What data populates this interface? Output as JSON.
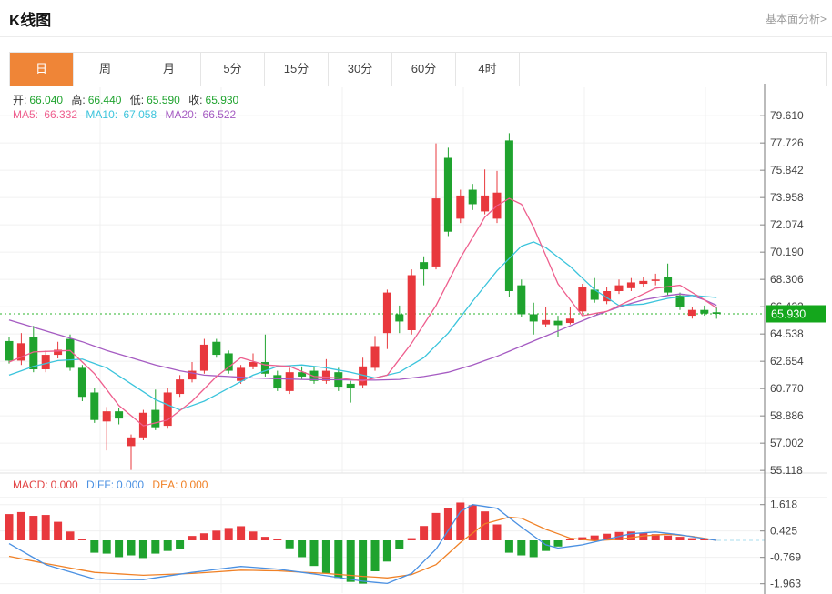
{
  "header": {
    "title": "K线图",
    "link": "基本面分析>"
  },
  "tabs": {
    "items": [
      {
        "label": "日",
        "active": true
      },
      {
        "label": "周",
        "active": false
      },
      {
        "label": "月",
        "active": false
      },
      {
        "label": "5分",
        "active": false
      },
      {
        "label": "15分",
        "active": false
      },
      {
        "label": "30分",
        "active": false
      },
      {
        "label": "60分",
        "active": false
      },
      {
        "label": "4时",
        "active": false
      }
    ]
  },
  "ohlc": {
    "open_label": "开:",
    "open": "66.040",
    "high_label": "高:",
    "high": "66.440",
    "low_label": "低:",
    "low": "65.590",
    "close_label": "收:",
    "close": "65.930"
  },
  "ma": {
    "ma5_label": "MA5:",
    "ma5": "66.332",
    "ma10_label": "MA10:",
    "ma10": "67.058",
    "ma20_label": "MA20:",
    "ma20": "66.522"
  },
  "macd_header": {
    "macd_label": "MACD:",
    "macd": "0.000",
    "diff_label": "DIFF:",
    "diff": "0.000",
    "dea_label": "DEA:",
    "dea": "0.000"
  },
  "colors": {
    "up": "#e8383d",
    "down": "#1fa32e",
    "price_tag_bg": "#14a71c",
    "ma5": "#ee5f8e",
    "ma10": "#3bc4dc",
    "ma20": "#a55bc2",
    "diff": "#4a90e2",
    "dea": "#f08126",
    "tab_active_bg": "#ef8537",
    "grid": "#f0f0f0",
    "axis_line": "#777777",
    "axis_text": "#444444",
    "current_line": "#2db52d"
  },
  "chart_data": {
    "type": "candlestick",
    "convention": "red = up, green = down (Chinese convention)",
    "price_axis": {
      "ticks": [
        "79.610",
        "77.726",
        "75.842",
        "73.958",
        "72.074",
        "70.190",
        "68.306",
        "66.422",
        "64.538",
        "62.654",
        "60.770",
        "58.886",
        "57.002",
        "55.118"
      ],
      "min": 55.118,
      "max": 79.61,
      "current_price": 65.93,
      "current_price_label": "65.930"
    },
    "candles": [
      [
        64.05,
        64.3,
        62.5,
        62.7
      ],
      [
        62.7,
        64.6,
        62.4,
        63.9
      ],
      [
        64.3,
        65.1,
        61.9,
        62.1
      ],
      [
        62.1,
        63.4,
        61.9,
        63.1
      ],
      [
        63.1,
        64.0,
        62.85,
        63.45
      ],
      [
        64.2,
        64.5,
        62.0,
        62.2
      ],
      [
        62.2,
        62.4,
        59.9,
        60.2
      ],
      [
        60.5,
        60.8,
        58.4,
        58.6
      ],
      [
        58.5,
        59.5,
        56.5,
        59.2
      ],
      [
        59.2,
        59.4,
        58.3,
        58.7
      ],
      [
        56.8,
        57.6,
        55.15,
        57.4
      ],
      [
        57.4,
        59.3,
        57.2,
        59.1
      ],
      [
        59.3,
        60.7,
        57.9,
        58.1
      ],
      [
        58.2,
        60.8,
        58.0,
        60.5
      ],
      [
        60.4,
        61.7,
        60.2,
        61.4
      ],
      [
        61.4,
        62.6,
        61.2,
        62.0
      ],
      [
        62.0,
        64.2,
        61.8,
        63.8
      ],
      [
        64.0,
        64.2,
        62.9,
        63.1
      ],
      [
        63.2,
        63.4,
        61.8,
        62.0
      ],
      [
        61.3,
        62.4,
        61.1,
        62.2
      ],
      [
        62.3,
        63.2,
        62.1,
        62.6
      ],
      [
        62.6,
        64.5,
        61.6,
        61.8
      ],
      [
        61.7,
        62.0,
        60.6,
        60.8
      ],
      [
        60.6,
        62.2,
        60.4,
        61.9
      ],
      [
        61.9,
        62.3,
        61.4,
        61.6
      ],
      [
        62.0,
        62.3,
        61.1,
        61.3
      ],
      [
        61.3,
        62.8,
        61.1,
        62.0
      ],
      [
        61.9,
        62.2,
        60.6,
        60.9
      ],
      [
        61.1,
        61.3,
        59.8,
        60.8
      ],
      [
        61.0,
        62.9,
        60.8,
        62.3
      ],
      [
        62.2,
        64.4,
        62.0,
        63.7
      ],
      [
        64.6,
        67.6,
        63.5,
        67.4
      ],
      [
        65.9,
        66.5,
        64.6,
        65.4
      ],
      [
        64.8,
        69.0,
        64.5,
        68.6
      ],
      [
        69.5,
        69.9,
        67.9,
        69.0
      ],
      [
        69.2,
        77.7,
        69.0,
        73.9
      ],
      [
        76.7,
        77.4,
        71.3,
        71.6
      ],
      [
        72.5,
        74.5,
        72.2,
        74.1
      ],
      [
        74.5,
        74.9,
        73.1,
        73.5
      ],
      [
        73.0,
        75.9,
        72.8,
        74.1
      ],
      [
        72.5,
        75.8,
        72.2,
        74.3
      ],
      [
        77.9,
        78.4,
        67.1,
        67.5
      ],
      [
        67.9,
        68.3,
        65.7,
        65.9
      ],
      [
        65.9,
        66.7,
        64.5,
        65.4
      ],
      [
        65.2,
        66.4,
        65.0,
        65.5
      ],
      [
        65.45,
        65.8,
        64.35,
        65.15
      ],
      [
        65.3,
        66.4,
        65.2,
        65.6
      ],
      [
        66.1,
        68.0,
        65.9,
        67.8
      ],
      [
        67.6,
        68.4,
        66.7,
        66.9
      ],
      [
        66.8,
        67.8,
        66.6,
        67.5
      ],
      [
        67.5,
        68.3,
        67.3,
        67.9
      ],
      [
        67.7,
        68.4,
        67.5,
        68.1
      ],
      [
        68.0,
        68.5,
        67.8,
        68.2
      ],
      [
        68.2,
        68.7,
        67.9,
        68.3
      ],
      [
        68.5,
        69.4,
        67.2,
        67.4
      ],
      [
        67.2,
        67.4,
        66.2,
        66.4
      ],
      [
        65.8,
        66.4,
        65.6,
        66.2
      ],
      [
        66.2,
        66.5,
        65.8,
        65.95
      ],
      [
        66.04,
        66.44,
        65.59,
        65.93
      ]
    ],
    "moving_averages": {
      "ma5_points": [
        [
          0,
          62.6
        ],
        [
          2,
          63.3
        ],
        [
          5,
          63.4
        ],
        [
          7,
          61.8
        ],
        [
          9,
          59.6
        ],
        [
          11,
          58.2
        ],
        [
          13,
          58.6
        ],
        [
          15,
          59.9
        ],
        [
          17,
          61.6
        ],
        [
          19,
          62.9
        ],
        [
          21,
          62.4
        ],
        [
          23,
          62.3
        ],
        [
          25,
          61.6
        ],
        [
          27,
          61.5
        ],
        [
          29,
          61.3
        ],
        [
          31,
          61.7
        ],
        [
          33,
          63.9
        ],
        [
          35,
          66.5
        ],
        [
          37,
          69.8
        ],
        [
          39,
          72.6
        ],
        [
          40,
          73.4
        ],
        [
          41,
          73.9
        ],
        [
          42,
          73.5
        ],
        [
          43,
          71.9
        ],
        [
          45,
          68.0
        ],
        [
          47,
          65.8
        ],
        [
          49,
          66.1
        ],
        [
          51,
          66.9
        ],
        [
          53,
          67.7
        ],
        [
          55,
          67.9
        ],
        [
          56,
          67.4
        ],
        [
          57,
          66.9
        ],
        [
          58,
          66.33
        ]
      ],
      "ma10_points": [
        [
          0,
          61.7
        ],
        [
          2,
          62.3
        ],
        [
          4,
          62.7
        ],
        [
          6,
          62.8
        ],
        [
          8,
          62.2
        ],
        [
          10,
          61.1
        ],
        [
          12,
          60.0
        ],
        [
          14,
          59.3
        ],
        [
          16,
          59.9
        ],
        [
          18,
          60.8
        ],
        [
          20,
          61.7
        ],
        [
          22,
          62.3
        ],
        [
          24,
          62.4
        ],
        [
          26,
          62.2
        ],
        [
          28,
          61.9
        ],
        [
          30,
          61.5
        ],
        [
          32,
          61.9
        ],
        [
          34,
          62.9
        ],
        [
          36,
          64.6
        ],
        [
          38,
          66.8
        ],
        [
          40,
          68.9
        ],
        [
          42,
          70.6
        ],
        [
          43,
          70.9
        ],
        [
          44,
          70.5
        ],
        [
          46,
          69.2
        ],
        [
          48,
          67.6
        ],
        [
          50,
          66.5
        ],
        [
          52,
          66.6
        ],
        [
          54,
          67.0
        ],
        [
          56,
          67.2
        ],
        [
          58,
          67.06
        ]
      ],
      "ma20_points": [
        [
          0,
          65.5
        ],
        [
          2,
          65.0
        ],
        [
          4,
          64.5
        ],
        [
          6,
          64.0
        ],
        [
          8,
          63.4
        ],
        [
          10,
          62.9
        ],
        [
          12,
          62.4
        ],
        [
          14,
          62.0
        ],
        [
          16,
          61.7
        ],
        [
          18,
          61.6
        ],
        [
          20,
          61.5
        ],
        [
          22,
          61.45
        ],
        [
          24,
          61.4
        ],
        [
          30,
          61.35
        ],
        [
          32,
          61.4
        ],
        [
          34,
          61.6
        ],
        [
          36,
          61.9
        ],
        [
          38,
          62.4
        ],
        [
          40,
          63.0
        ],
        [
          42,
          63.7
        ],
        [
          44,
          64.4
        ],
        [
          46,
          65.1
        ],
        [
          48,
          65.8
        ],
        [
          50,
          66.4
        ],
        [
          52,
          66.9
        ],
        [
          54,
          67.2
        ],
        [
          55,
          67.3
        ],
        [
          56,
          67.2
        ],
        [
          57,
          66.9
        ],
        [
          58,
          66.52
        ]
      ]
    },
    "macd": {
      "axis_ticks": [
        "1.618",
        "0.425",
        "-0.769",
        "-1.963"
      ],
      "values": {
        "macd": 0.0,
        "diff": 0.0,
        "dea": 0.0
      },
      "histogram": [
        1.19,
        1.28,
        1.11,
        1.15,
        0.84,
        0.4,
        0.05,
        -0.56,
        -0.6,
        -0.76,
        -0.68,
        -0.8,
        -0.6,
        -0.48,
        -0.4,
        0.2,
        0.32,
        0.44,
        0.56,
        0.64,
        0.4,
        0.16,
        0.08,
        -0.36,
        -0.76,
        -1.16,
        -1.48,
        -1.7,
        -1.88,
        -1.96,
        -1.4,
        -0.96,
        -0.4,
        0.1,
        0.65,
        1.24,
        1.45,
        1.71,
        1.59,
        1.31,
        0.72,
        -0.56,
        -0.68,
        -0.76,
        -0.48,
        -0.28,
        0.08,
        0.14,
        0.22,
        0.3,
        0.38,
        0.4,
        0.34,
        0.28,
        0.22,
        0.16,
        0.1,
        0.05,
        0.0
      ],
      "diff_points": [
        [
          0,
          -0.15
        ],
        [
          3,
          -1.1
        ],
        [
          7,
          -1.75
        ],
        [
          11,
          -1.78
        ],
        [
          15,
          -1.45
        ],
        [
          19,
          -1.18
        ],
        [
          22,
          -1.3
        ],
        [
          26,
          -1.6
        ],
        [
          29,
          -1.85
        ],
        [
          31,
          -1.95
        ],
        [
          33,
          -1.5
        ],
        [
          35,
          -0.4
        ],
        [
          37,
          1.3
        ],
        [
          38,
          1.62
        ],
        [
          40,
          1.45
        ],
        [
          42,
          0.6
        ],
        [
          44,
          -0.2
        ],
        [
          45,
          -0.35
        ],
        [
          47,
          -0.2
        ],
        [
          49,
          0.05
        ],
        [
          51,
          0.3
        ],
        [
          53,
          0.38
        ],
        [
          55,
          0.25
        ],
        [
          57,
          0.08
        ],
        [
          58,
          0.0
        ]
      ],
      "dea_points": [
        [
          0,
          -0.72
        ],
        [
          3,
          -1.05
        ],
        [
          7,
          -1.45
        ],
        [
          11,
          -1.58
        ],
        [
          15,
          -1.5
        ],
        [
          19,
          -1.35
        ],
        [
          22,
          -1.38
        ],
        [
          26,
          -1.5
        ],
        [
          29,
          -1.63
        ],
        [
          31,
          -1.7
        ],
        [
          33,
          -1.55
        ],
        [
          35,
          -1.1
        ],
        [
          37,
          -0.1
        ],
        [
          39,
          0.75
        ],
        [
          41,
          1.05
        ],
        [
          42,
          1.0
        ],
        [
          44,
          0.5
        ],
        [
          46,
          0.1
        ],
        [
          48,
          -0.02
        ],
        [
          50,
          0.05
        ],
        [
          52,
          0.2
        ],
        [
          54,
          0.28
        ],
        [
          56,
          0.18
        ],
        [
          58,
          0.0
        ]
      ]
    }
  }
}
